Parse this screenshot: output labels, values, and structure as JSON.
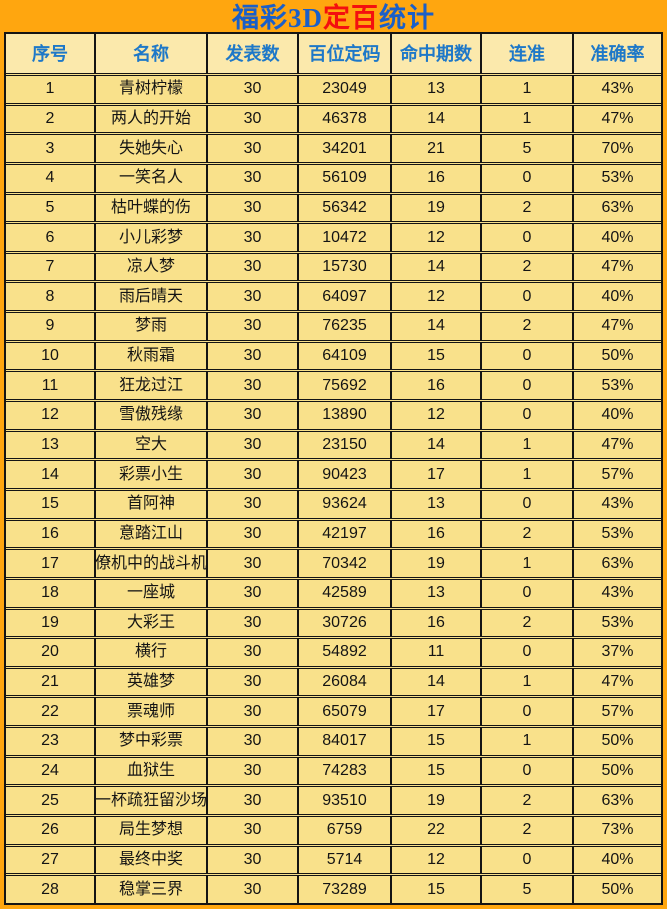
{
  "title": {
    "part_blue_left": "福彩3D",
    "part_red": "定百",
    "part_blue_right": "统计"
  },
  "colors": {
    "accent_orange": "#FFA60F",
    "header_bg": "#FBE9AC",
    "row_bg": "#F9E18B",
    "header_text": "#1E78C8",
    "title_blue": "#1A5FC8",
    "title_red": "#F40F0F",
    "grid_line": "#141414",
    "text_dark": "#141414"
  },
  "table": {
    "columns": [
      "序号",
      "名称",
      "发表数",
      "百位定码",
      "命中期数",
      "连准",
      "准确率"
    ],
    "rows": [
      {
        "index": "1",
        "name": "青树柠檬",
        "published": "30",
        "code": "23049",
        "hits": "13",
        "streak": "1",
        "accuracy": "43%"
      },
      {
        "index": "2",
        "name": "两人的开始",
        "published": "30",
        "code": "46378",
        "hits": "14",
        "streak": "1",
        "accuracy": "47%"
      },
      {
        "index": "3",
        "name": "失她失心",
        "published": "30",
        "code": "34201",
        "hits": "21",
        "streak": "5",
        "accuracy": "70%"
      },
      {
        "index": "4",
        "name": "一笑名人",
        "published": "30",
        "code": "56109",
        "hits": "16",
        "streak": "0",
        "accuracy": "53%"
      },
      {
        "index": "5",
        "name": "枯叶蝶的伤",
        "published": "30",
        "code": "56342",
        "hits": "19",
        "streak": "2",
        "accuracy": "63%"
      },
      {
        "index": "6",
        "name": "小儿彩梦",
        "published": "30",
        "code": "10472",
        "hits": "12",
        "streak": "0",
        "accuracy": "40%"
      },
      {
        "index": "7",
        "name": "凉人梦",
        "published": "30",
        "code": "15730",
        "hits": "14",
        "streak": "2",
        "accuracy": "47%"
      },
      {
        "index": "8",
        "name": "雨后晴天",
        "published": "30",
        "code": "64097",
        "hits": "12",
        "streak": "0",
        "accuracy": "40%"
      },
      {
        "index": "9",
        "name": "梦雨",
        "published": "30",
        "code": "76235",
        "hits": "14",
        "streak": "2",
        "accuracy": "47%"
      },
      {
        "index": "10",
        "name": "秋雨霜",
        "published": "30",
        "code": "64109",
        "hits": "15",
        "streak": "0",
        "accuracy": "50%"
      },
      {
        "index": "11",
        "name": "狂龙过江",
        "published": "30",
        "code": "75692",
        "hits": "16",
        "streak": "0",
        "accuracy": "53%"
      },
      {
        "index": "12",
        "name": "雪傲残缘",
        "published": "30",
        "code": "13890",
        "hits": "12",
        "streak": "0",
        "accuracy": "40%"
      },
      {
        "index": "13",
        "name": "空大",
        "published": "30",
        "code": "23150",
        "hits": "14",
        "streak": "1",
        "accuracy": "47%"
      },
      {
        "index": "14",
        "name": "彩票小生",
        "published": "30",
        "code": "90423",
        "hits": "17",
        "streak": "1",
        "accuracy": "57%"
      },
      {
        "index": "15",
        "name": "首阿神",
        "published": "30",
        "code": "93624",
        "hits": "13",
        "streak": "0",
        "accuracy": "43%"
      },
      {
        "index": "16",
        "name": "意踏江山",
        "published": "30",
        "code": "42197",
        "hits": "16",
        "streak": "2",
        "accuracy": "53%"
      },
      {
        "index": "17",
        "name": "僚机中的战斗机",
        "published": "30",
        "code": "70342",
        "hits": "19",
        "streak": "1",
        "accuracy": "63%"
      },
      {
        "index": "18",
        "name": "一座城",
        "published": "30",
        "code": "42589",
        "hits": "13",
        "streak": "0",
        "accuracy": "43%"
      },
      {
        "index": "19",
        "name": "大彩王",
        "published": "30",
        "code": "30726",
        "hits": "16",
        "streak": "2",
        "accuracy": "53%"
      },
      {
        "index": "20",
        "name": "横行",
        "published": "30",
        "code": "54892",
        "hits": "11",
        "streak": "0",
        "accuracy": "37%"
      },
      {
        "index": "21",
        "name": "英雄梦",
        "published": "30",
        "code": "26084",
        "hits": "14",
        "streak": "1",
        "accuracy": "47%"
      },
      {
        "index": "22",
        "name": "票魂师",
        "published": "30",
        "code": "65079",
        "hits": "17",
        "streak": "0",
        "accuracy": "57%"
      },
      {
        "index": "23",
        "name": "梦中彩票",
        "published": "30",
        "code": "84017",
        "hits": "15",
        "streak": "1",
        "accuracy": "50%"
      },
      {
        "index": "24",
        "name": "血狱生",
        "published": "30",
        "code": "74283",
        "hits": "15",
        "streak": "0",
        "accuracy": "50%"
      },
      {
        "index": "25",
        "name": "一杯疏狂留沙场",
        "published": "30",
        "code": "93510",
        "hits": "19",
        "streak": "2",
        "accuracy": "63%"
      },
      {
        "index": "26",
        "name": "局生梦想",
        "published": "30",
        "code": "6759",
        "hits": "22",
        "streak": "2",
        "accuracy": "73%"
      },
      {
        "index": "27",
        "name": "最终中奖",
        "published": "30",
        "code": "5714",
        "hits": "12",
        "streak": "0",
        "accuracy": "40%"
      },
      {
        "index": "28",
        "name": "稳掌三界",
        "published": "30",
        "code": "73289",
        "hits": "15",
        "streak": "5",
        "accuracy": "50%"
      }
    ]
  }
}
